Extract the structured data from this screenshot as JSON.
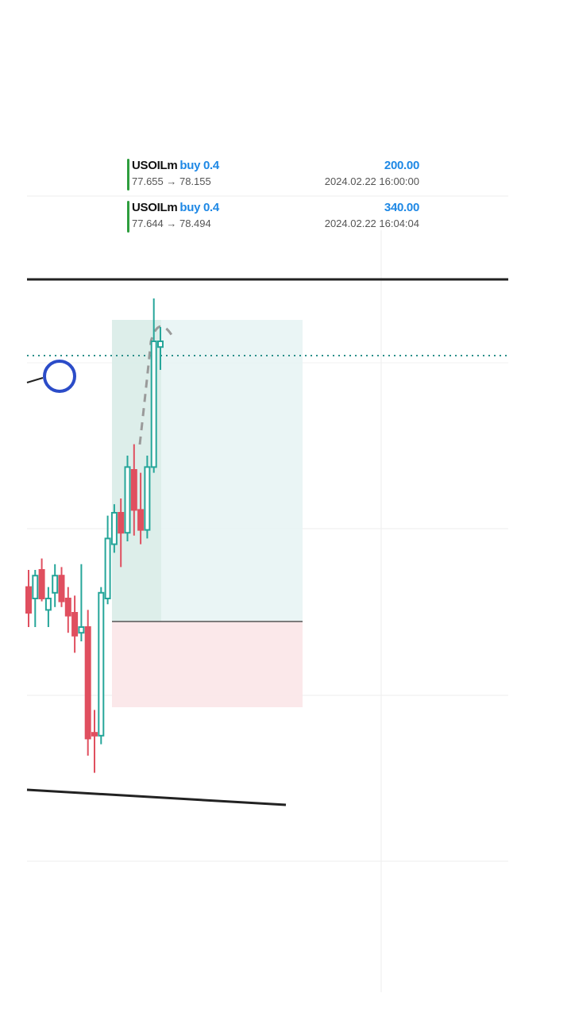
{
  "colors": {
    "profit_blue": "#1e88e5",
    "bull_candle": "#26a69a",
    "bear_candle": "#e04f5f",
    "buy_accent": "#2e9e3e",
    "target_zone": "#e6f3f3",
    "stop_zone": "#fbe5e8"
  },
  "trades": [
    {
      "symbol": "USOILm",
      "side": "buy 0.4",
      "profit": "200.00",
      "prices": "77.655 → 78.155",
      "time": "2024.02.22 16:00:00"
    },
    {
      "symbol": "USOILm",
      "side": "buy 0.4",
      "profit": "340.00",
      "prices": "77.644 → 78.494",
      "time": "2024.02.22 16:04:04"
    }
  ],
  "chart_data": {
    "type": "candlestick",
    "candles": [
      {
        "o": 28,
        "h": 40,
        "l": 0,
        "c": 10
      },
      {
        "o": 20,
        "h": 40,
        "l": 0,
        "c": 36
      },
      {
        "o": 40,
        "h": 48,
        "l": 18,
        "c": 20
      },
      {
        "o": 12,
        "h": 28,
        "l": 0,
        "c": 20
      },
      {
        "o": 24,
        "h": 44,
        "l": 14,
        "c": 36
      },
      {
        "o": 36,
        "h": 42,
        "l": 14,
        "c": 18
      },
      {
        "o": 20,
        "h": 28,
        "l": -4,
        "c": 8
      },
      {
        "o": 10,
        "h": 22,
        "l": -18,
        "c": -6
      },
      {
        "o": -4,
        "h": 44,
        "l": -10,
        "c": 0
      },
      {
        "o": 0,
        "h": 12,
        "l": -90,
        "c": -78
      },
      {
        "o": -74,
        "h": -58,
        "l": -102,
        "c": -76
      },
      {
        "o": -76,
        "h": 28,
        "l": -82,
        "c": 24
      },
      {
        "o": 20,
        "h": 78,
        "l": 16,
        "c": 62
      },
      {
        "o": 58,
        "h": 86,
        "l": 52,
        "c": 80
      },
      {
        "o": 80,
        "h": 90,
        "l": 42,
        "c": 66
      },
      {
        "o": 66,
        "h": 120,
        "l": 60,
        "c": 112
      },
      {
        "o": 110,
        "h": 128,
        "l": 64,
        "c": 82
      },
      {
        "o": 82,
        "h": 108,
        "l": 58,
        "c": 68
      },
      {
        "o": 68,
        "h": 120,
        "l": 62,
        "c": 112
      },
      {
        "o": 112,
        "h": 230,
        "l": 108,
        "c": 200
      },
      {
        "o": 196,
        "h": 210,
        "l": 180,
        "c": 200
      }
    ]
  }
}
